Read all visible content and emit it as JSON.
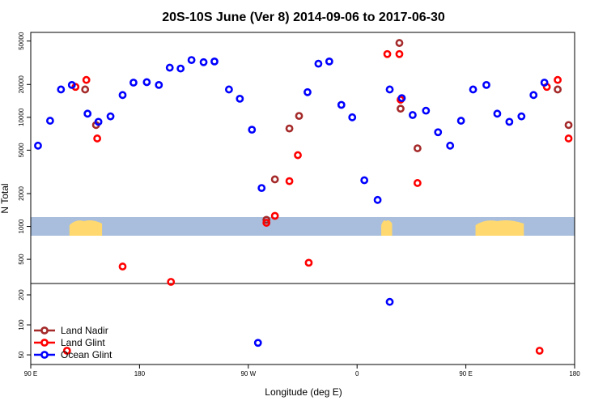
{
  "chart_data": {
    "type": "scatter",
    "title": "20S-10S June (Ver 8)   2014-09-06 to 2017-06-30",
    "xlabel": "Longitude (deg E)",
    "ylabel": "N Total",
    "x_axis": {
      "range_deg_east": [
        90,
        360
      ],
      "ticks": [
        {
          "value": 90,
          "label": "90 E"
        },
        {
          "value": 180,
          "label": "180"
        },
        {
          "value": 270,
          "label": "90 W"
        },
        {
          "value": 360,
          "label": "0"
        },
        {
          "value": 450,
          "label": "90 E"
        },
        {
          "value": 540,
          "label": "180"
        }
      ],
      "range": [
        90,
        540
      ]
    },
    "y_axis_upper": {
      "scale": "log",
      "ylim": [
        300,
        60000
      ],
      "ticks": [
        {
          "value": 500,
          "label": "500"
        },
        {
          "value": 1000,
          "label": "1000"
        },
        {
          "value": 2000,
          "label": "2000"
        },
        {
          "value": 5000,
          "label": "5000"
        },
        {
          "value": 10000,
          "label": "10000"
        },
        {
          "value": 20000,
          "label": "20000"
        },
        {
          "value": 50000,
          "label": "50000"
        }
      ]
    },
    "y_axis_lower": {
      "scale": "log",
      "ylim": [
        40,
        260
      ],
      "ticks": [
        {
          "value": 50,
          "label": "50"
        },
        {
          "value": 100,
          "label": "100"
        },
        {
          "value": 200,
          "label": "200"
        }
      ]
    },
    "colors": {
      "land_nadir": "#a52a2a",
      "land_glint": "#ff0000",
      "ocean_glint": "#0000ff",
      "map_ocean": "#a8bedc",
      "map_land": "#ffd870"
    },
    "legend": {
      "placement": "bottom-left",
      "entries": [
        {
          "key": "land_nadir",
          "label": "Land Nadir"
        },
        {
          "key": "land_glint",
          "label": "Land Glint"
        },
        {
          "key": "ocean_glint",
          "label": "Ocean Glint"
        }
      ]
    },
    "series": [
      {
        "name": "Land Nadir",
        "key": "land_nadir",
        "points": [
          [
            135,
            18000
          ],
          [
            144,
            8500
          ],
          [
            285,
            1150
          ],
          [
            292,
            2700
          ],
          [
            304,
            7900
          ],
          [
            312,
            10300
          ],
          [
            395,
            48000
          ],
          [
            396,
            12000
          ],
          [
            410,
            5200
          ],
          [
            526,
            18000
          ],
          [
            535,
            8500
          ]
        ]
      },
      {
        "name": "Land Glint",
        "key": "land_glint",
        "points": [
          [
            127,
            19000
          ],
          [
            136,
            22000
          ],
          [
            145,
            6400
          ],
          [
            285,
            1080
          ],
          [
            292,
            1250
          ],
          [
            304,
            2600
          ],
          [
            311,
            4500
          ],
          [
            385,
            38000
          ],
          [
            395,
            38000
          ],
          [
            396,
            14500
          ],
          [
            410,
            2500
          ],
          [
            517,
            19000
          ],
          [
            526,
            22000
          ],
          [
            535,
            6400
          ]
        ]
      },
      {
        "name": "Land Glint (lower panel)",
        "key": "land_glint",
        "panel": "lower",
        "points": [
          [
            166,
            385
          ],
          [
            206,
            270
          ],
          [
            320,
            420
          ],
          [
            120,
            55
          ],
          [
            511,
            55
          ]
        ]
      },
      {
        "name": "Ocean Glint",
        "key": "ocean_glint",
        "points": [
          [
            96,
            5500
          ],
          [
            106,
            9300
          ],
          [
            115,
            18000
          ],
          [
            124,
            19800
          ],
          [
            137,
            10800
          ],
          [
            146,
            9100
          ],
          [
            156,
            10200
          ],
          [
            166,
            16000
          ],
          [
            175,
            20800
          ],
          [
            186,
            21000
          ],
          [
            196,
            19800
          ],
          [
            205,
            28500
          ],
          [
            214,
            28000
          ],
          [
            223,
            33500
          ],
          [
            233,
            32000
          ],
          [
            242,
            32500
          ],
          [
            254,
            18000
          ],
          [
            263,
            14800
          ],
          [
            273,
            7700
          ],
          [
            281,
            2250
          ],
          [
            319,
            17000
          ],
          [
            328,
            31000
          ],
          [
            337,
            32500
          ],
          [
            347,
            13000
          ],
          [
            356,
            10000
          ],
          [
            366,
            2650
          ],
          [
            377,
            1750
          ],
          [
            387,
            18000
          ],
          [
            397,
            15000
          ],
          [
            406,
            10500
          ],
          [
            417,
            11500
          ],
          [
            427,
            7300
          ],
          [
            437,
            5500
          ],
          [
            446,
            9300
          ],
          [
            456,
            18000
          ],
          [
            467,
            19800
          ],
          [
            476,
            10800
          ],
          [
            486,
            9100
          ],
          [
            496,
            10200
          ],
          [
            506,
            16000
          ],
          [
            515,
            20800
          ]
        ]
      },
      {
        "name": "Ocean Glint (lower panel)",
        "key": "ocean_glint",
        "panel": "lower",
        "points": [
          [
            278,
            66
          ],
          [
            387,
            170
          ]
        ]
      }
    ],
    "map_strip_land_segments": [
      [
        122,
        149
      ],
      [
        380,
        389
      ],
      [
        458,
        498
      ],
      [
        578,
        605
      ]
    ],
    "map_strip_land_segments_deg_east": [],
    "annotations": []
  }
}
